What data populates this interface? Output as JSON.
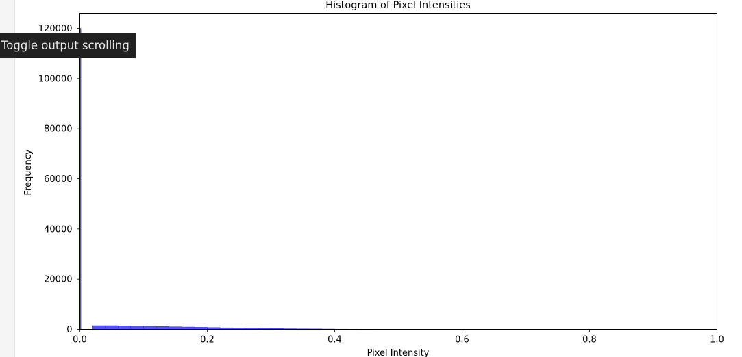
{
  "tooltip": {
    "text": "Toggle output scrolling"
  },
  "colors": {
    "bar_fill": "#5555ee",
    "bar_edge": "#1a1ab0",
    "tooltip_bg": "#212121",
    "tooltip_text": "#e8e8e8"
  },
  "chart_data": {
    "type": "bar",
    "title": "Histogram of Pixel Intensities",
    "xlabel": "Pixel Intensity",
    "ylabel": "Frequency",
    "xlim": [
      0,
      1
    ],
    "ylim": [
      0,
      126000
    ],
    "x_ticks": [
      "0.0",
      "0.2",
      "0.4",
      "0.6",
      "0.8",
      "1.0"
    ],
    "y_ticks": [
      "0",
      "20000",
      "40000",
      "60000",
      "80000",
      "100000",
      "120000"
    ],
    "grid": false,
    "series": [
      {
        "x": [
          0.0,
          0.02,
          0.04,
          0.06,
          0.08,
          0.1,
          0.12,
          0.14,
          0.16,
          0.18,
          0.2,
          0.22,
          0.24,
          0.26,
          0.28,
          0.3,
          0.32,
          0.34,
          0.36,
          0.38,
          0.4,
          0.42,
          0.44
        ],
        "values": [
          120000,
          1500,
          1500,
          1400,
          1350,
          1250,
          1150,
          1050,
          950,
          850,
          750,
          650,
          550,
          450,
          380,
          320,
          260,
          210,
          170,
          130,
          90,
          60,
          30
        ]
      }
    ]
  }
}
